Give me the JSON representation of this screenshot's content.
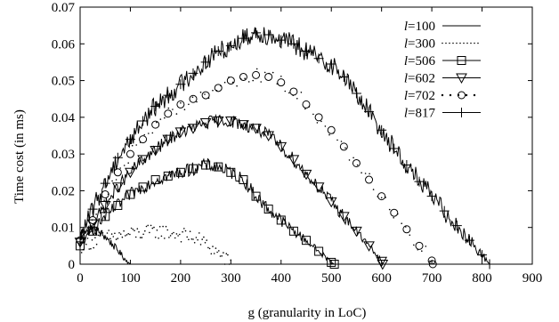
{
  "chart_data": {
    "type": "line",
    "xlabel": "g (granularity in LoC)",
    "ylabel": "Time cost (in ms)",
    "xlim": [
      0,
      900
    ],
    "ylim": [
      0,
      0.07
    ],
    "xticks": [
      0,
      100,
      200,
      300,
      400,
      500,
      600,
      700,
      800,
      900
    ],
    "xtick_labels": [
      "0",
      "100",
      "200",
      "300",
      "400",
      "500",
      "600",
      "700",
      "800",
      "900"
    ],
    "yticks": [
      0,
      0.01,
      0.02,
      0.03,
      0.04,
      0.05,
      0.06,
      0.07
    ],
    "ytick_labels": [
      "0",
      "0.01",
      "0.02",
      "0.03",
      "0.04",
      "0.05",
      "0.06",
      "0.07"
    ],
    "grid": false,
    "legend_position": "top-right",
    "series": [
      {
        "name": "l=100",
        "name_var": "l",
        "name_value": "=100",
        "style": "solid",
        "marker": "none",
        "x": [
          0,
          10,
          20,
          30,
          40,
          50,
          60,
          70,
          80,
          90,
          100
        ],
        "y": [
          0.0085,
          0.0093,
          0.0095,
          0.0092,
          0.0085,
          0.0075,
          0.006,
          0.0045,
          0.003,
          0.0012,
          0
        ]
      },
      {
        "name": "l=300",
        "name_var": "l",
        "name_value": "=300",
        "style": "dotted",
        "marker": "none",
        "x": [
          0,
          20,
          40,
          60,
          80,
          100,
          120,
          140,
          160,
          180,
          200,
          220,
          240,
          260,
          280,
          300
        ],
        "y": [
          0.005,
          0.006,
          0.0068,
          0.0075,
          0.0078,
          0.0082,
          0.0085,
          0.0087,
          0.009,
          0.0085,
          0.008,
          0.0075,
          0.0065,
          0.0045,
          0.0025,
          0
        ]
      },
      {
        "name": "l=506",
        "name_var": "l",
        "name_value": "=506",
        "style": "solid",
        "marker": "square",
        "x": [
          0,
          25,
          50,
          75,
          100,
          125,
          150,
          175,
          200,
          225,
          250,
          275,
          300,
          325,
          350,
          375,
          400,
          425,
          450,
          475,
          500,
          506
        ],
        "y": [
          0.005,
          0.009,
          0.013,
          0.016,
          0.019,
          0.021,
          0.023,
          0.024,
          0.025,
          0.026,
          0.027,
          0.0265,
          0.025,
          0.023,
          0.0185,
          0.015,
          0.012,
          0.009,
          0.0065,
          0.0035,
          0.0005,
          0
        ]
      },
      {
        "name": "l=602",
        "name_var": "l",
        "name_value": "=602",
        "style": "solid",
        "marker": "triangle-down",
        "x": [
          0,
          25,
          50,
          75,
          100,
          125,
          150,
          175,
          200,
          225,
          250,
          275,
          300,
          325,
          350,
          375,
          400,
          425,
          450,
          475,
          500,
          525,
          550,
          575,
          600,
          602
        ],
        "y": [
          0.006,
          0.011,
          0.016,
          0.021,
          0.025,
          0.0285,
          0.031,
          0.034,
          0.036,
          0.037,
          0.0385,
          0.039,
          0.039,
          0.038,
          0.037,
          0.035,
          0.032,
          0.0285,
          0.0245,
          0.021,
          0.017,
          0.013,
          0.009,
          0.005,
          0.0008,
          0
        ]
      },
      {
        "name": "l=702",
        "name_var": "l",
        "name_value": "=702",
        "style": "dotted",
        "marker": "circle",
        "x": [
          0,
          25,
          50,
          75,
          100,
          125,
          150,
          175,
          200,
          225,
          250,
          275,
          300,
          325,
          350,
          375,
          400,
          425,
          450,
          475,
          500,
          525,
          550,
          575,
          600,
          625,
          650,
          675,
          700,
          702
        ],
        "y": [
          0.0065,
          0.012,
          0.019,
          0.025,
          0.03,
          0.034,
          0.038,
          0.041,
          0.0435,
          0.045,
          0.046,
          0.048,
          0.05,
          0.051,
          0.0515,
          0.051,
          0.0495,
          0.047,
          0.0435,
          0.04,
          0.0365,
          0.032,
          0.0275,
          0.023,
          0.0185,
          0.014,
          0.0095,
          0.005,
          0.001,
          0
        ]
      },
      {
        "name": "l=817",
        "name_var": "l",
        "name_value": "=817",
        "style": "solid",
        "marker": "plus",
        "x": [
          0,
          25,
          50,
          75,
          100,
          125,
          150,
          175,
          200,
          225,
          250,
          275,
          300,
          325,
          350,
          375,
          400,
          425,
          450,
          475,
          500,
          525,
          550,
          575,
          600,
          625,
          650,
          675,
          700,
          725,
          750,
          775,
          800,
          815
        ],
        "y": [
          0.007,
          0.015,
          0.022,
          0.029,
          0.034,
          0.039,
          0.043,
          0.046,
          0.049,
          0.052,
          0.055,
          0.058,
          0.0595,
          0.0615,
          0.063,
          0.0625,
          0.061,
          0.06,
          0.058,
          0.056,
          0.0545,
          0.051,
          0.0465,
          0.0415,
          0.0365,
          0.0315,
          0.027,
          0.0225,
          0.0185,
          0.0145,
          0.0105,
          0.0065,
          0.0025,
          0
        ]
      }
    ]
  }
}
